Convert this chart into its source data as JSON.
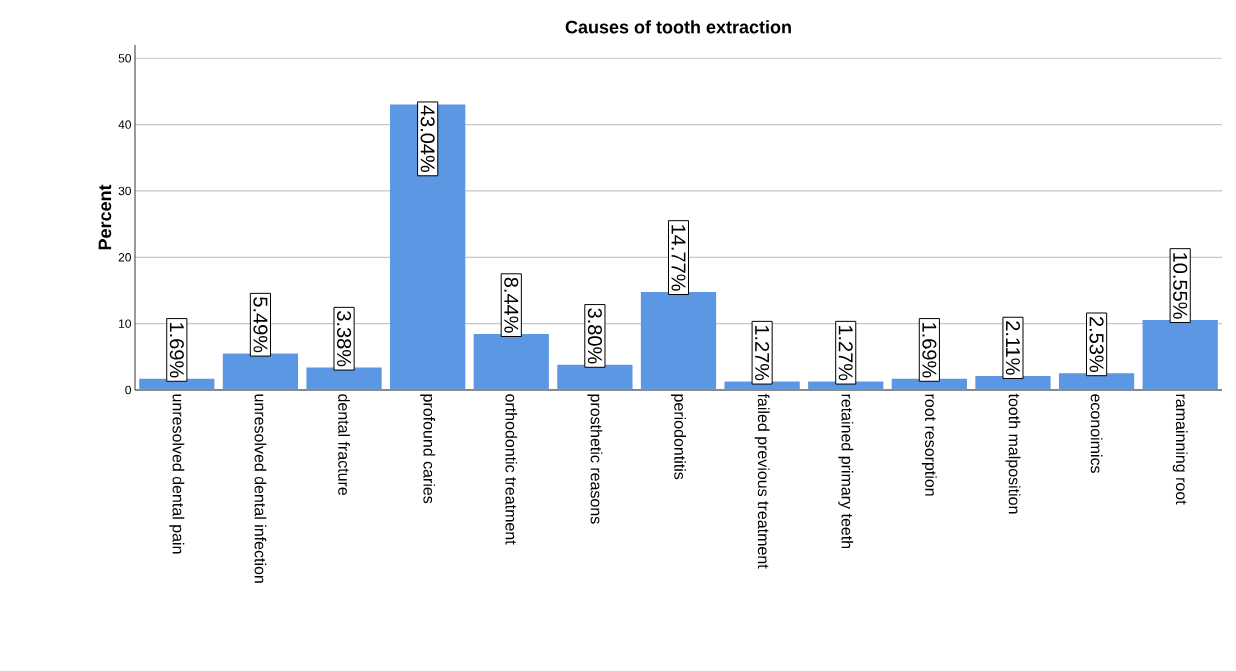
{
  "chart_data": {
    "type": "bar",
    "title": "Causes of tooth extraction",
    "ylabel": "Percent",
    "categories": [
      "unresolved dental pain",
      "unresolved dental infection",
      "dental fracture",
      "profound caries",
      "orthodontic treatment",
      "prosthetic reasons",
      "periodontitis",
      "failed previous treatment",
      "retained primary teeth",
      "root resorption",
      "tooth malposition",
      "econoimics",
      "ramainning root"
    ],
    "values": [
      1.69,
      5.49,
      3.38,
      43.04,
      8.44,
      3.8,
      14.77,
      1.27,
      1.27,
      1.69,
      2.11,
      2.53,
      10.55
    ],
    "value_labels": [
      "1.69%",
      "5.49%",
      "3.38%",
      "43.04%",
      "8.44%",
      "3.80%",
      "14.77%",
      "1.27%",
      "1.27%",
      "1.69%",
      "2.11%",
      "2.53%",
      "10.55%"
    ],
    "color": "#5b97e3",
    "ylim": [
      0,
      52
    ],
    "yticks": [
      0,
      10,
      20,
      30,
      40,
      50
    ],
    "grid": "y"
  }
}
